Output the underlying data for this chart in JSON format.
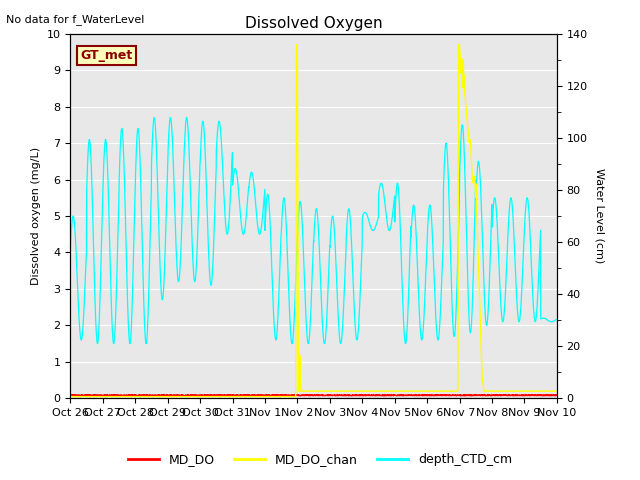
{
  "title": "Dissolved Oxygen",
  "top_left_text": "No data for f_WaterLevel",
  "annotation_text": "GT_met",
  "xlabel_ticks": [
    "Oct 26",
    "Oct 27",
    "Oct 28",
    "Oct 29",
    "Oct 30",
    "Oct 31",
    "Nov 1",
    "Nov 2",
    "Nov 3",
    "Nov 4",
    "Nov 5",
    "Nov 6",
    "Nov 7",
    "Nov 8",
    "Nov 9",
    "Nov 10"
  ],
  "ylabel_left": "Dissolved oxygen (mg/L)",
  "ylabel_right": "Water Level (cm)",
  "ylim_left": [
    0.0,
    10.0
  ],
  "ylim_right": [
    0,
    140
  ],
  "bg_color": "#e8e8e8",
  "line_colors": {
    "MD_DO": "#ff0000",
    "MD_DO_chan": "#ffff00",
    "depth_CTD_cm": "#00ffff"
  },
  "legend_labels": [
    "MD_DO",
    "MD_DO_chan",
    "depth_CTD_cm"
  ],
  "figsize": [
    6.4,
    4.8
  ],
  "dpi": 100
}
